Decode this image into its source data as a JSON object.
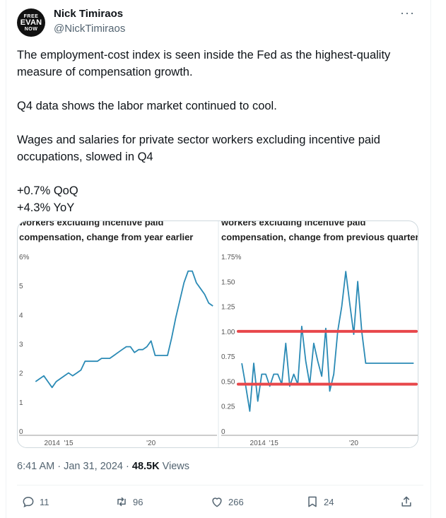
{
  "author": {
    "avatar_lines": [
      "FREE",
      "EVAN",
      "NOW"
    ],
    "name": "Nick Timiraos",
    "handle": "@NickTimiraos"
  },
  "more_label": "···",
  "tweet": {
    "paragraphs": [
      "The employment-cost index is seen inside the Fed as the highest-quality measure of compensation growth.",
      "Q4 data shows the labor market continued to cool.",
      "Wages and salaries for private sector workers excluding incentive paid occupations, slowed in Q4",
      "+0.7% QoQ",
      "+4.3% YoY"
    ]
  },
  "chart_data": [
    {
      "type": "line",
      "title": "workers excluding incentive paid compensation, change from year earlier",
      "title_lines": [
        "workers excluding incentive paid",
        "compensation, change from year earlier"
      ],
      "x_tick_labels": [
        "2014",
        "'15",
        "'20"
      ],
      "y_tick_labels": [
        "6%",
        "5",
        "4",
        "3",
        "2",
        "1",
        "0"
      ],
      "ylim": [
        0,
        6
      ],
      "grid": false,
      "color": "#2a8ab5",
      "x": [
        2013.0,
        2013.25,
        2013.5,
        2013.75,
        2014.0,
        2014.25,
        2014.5,
        2014.75,
        2015.0,
        2015.25,
        2015.5,
        2015.75,
        2016.0,
        2016.25,
        2016.5,
        2016.75,
        2017.0,
        2017.25,
        2017.5,
        2017.75,
        2018.0,
        2018.25,
        2018.5,
        2018.75,
        2019.0,
        2019.25,
        2019.5,
        2019.75,
        2020.0,
        2020.25,
        2020.5,
        2020.75,
        2021.0,
        2021.25,
        2021.5,
        2021.75,
        2022.0,
        2022.25,
        2022.5,
        2022.75,
        2023.0,
        2023.25,
        2023.5,
        2023.75
      ],
      "values": [
        1.7,
        1.8,
        1.9,
        1.7,
        1.5,
        1.7,
        1.8,
        1.9,
        2.0,
        1.9,
        2.0,
        2.1,
        2.4,
        2.4,
        2.4,
        2.4,
        2.5,
        2.5,
        2.5,
        2.6,
        2.7,
        2.8,
        2.9,
        2.9,
        2.7,
        2.8,
        2.8,
        2.9,
        3.1,
        2.6,
        2.6,
        2.6,
        2.6,
        3.2,
        3.9,
        4.5,
        5.1,
        5.5,
        5.5,
        5.1,
        4.9,
        4.7,
        4.4,
        4.3
      ]
    },
    {
      "type": "line",
      "title": "workers excluding incentive paid compensation, change from previous quarter",
      "title_lines": [
        "workers excluding incentive paid",
        "compensation, change from previous quarter"
      ],
      "x_tick_labels": [
        "2014",
        "'15",
        "'20"
      ],
      "y_tick_labels": [
        "1.75%",
        "1.50",
        "1.25",
        "1.00",
        "0.75",
        "0.50",
        "0.25",
        "0"
      ],
      "ylim": [
        0,
        1.75
      ],
      "grid": false,
      "color": "#2a8ab5",
      "annotation_color": "#e8474b",
      "reference_lines": [
        1.0,
        0.47
      ],
      "x": [
        2013.0,
        2013.25,
        2013.5,
        2013.75,
        2014.0,
        2014.25,
        2014.5,
        2014.75,
        2015.0,
        2015.25,
        2015.5,
        2015.75,
        2016.0,
        2016.25,
        2016.5,
        2016.75,
        2017.0,
        2017.25,
        2017.5,
        2017.75,
        2018.0,
        2018.25,
        2018.5,
        2018.75,
        2019.0,
        2019.25,
        2019.5,
        2019.75,
        2020.0,
        2020.25,
        2020.5,
        2020.75,
        2021.0,
        2021.25,
        2021.5,
        2021.75,
        2022.0,
        2022.25,
        2022.5,
        2022.75,
        2023.0,
        2023.25,
        2023.5,
        2023.75
      ],
      "values": [
        0.68,
        0.45,
        0.2,
        0.68,
        0.3,
        0.57,
        0.57,
        0.45,
        0.57,
        0.57,
        0.47,
        0.88,
        0.45,
        0.57,
        0.47,
        1.05,
        0.7,
        0.47,
        0.88,
        0.7,
        0.55,
        1.03,
        0.4,
        0.57,
        1.0,
        1.25,
        1.6,
        1.28,
        0.97,
        1.5,
        1.0,
        0.68,
        0.68,
        0.68,
        0.68,
        0.68,
        0.68,
        0.68,
        0.68,
        0.68,
        0.68,
        0.68,
        0.68,
        0.68
      ]
    }
  ],
  "meta": {
    "time": "6:41 AM",
    "separator": "·",
    "date": "Jan 31, 2024",
    "views_count": "48.5K",
    "views_label": "Views"
  },
  "actions": {
    "reply_count": "11",
    "retweet_count": "96",
    "like_count": "266",
    "bookmark_count": "24"
  }
}
